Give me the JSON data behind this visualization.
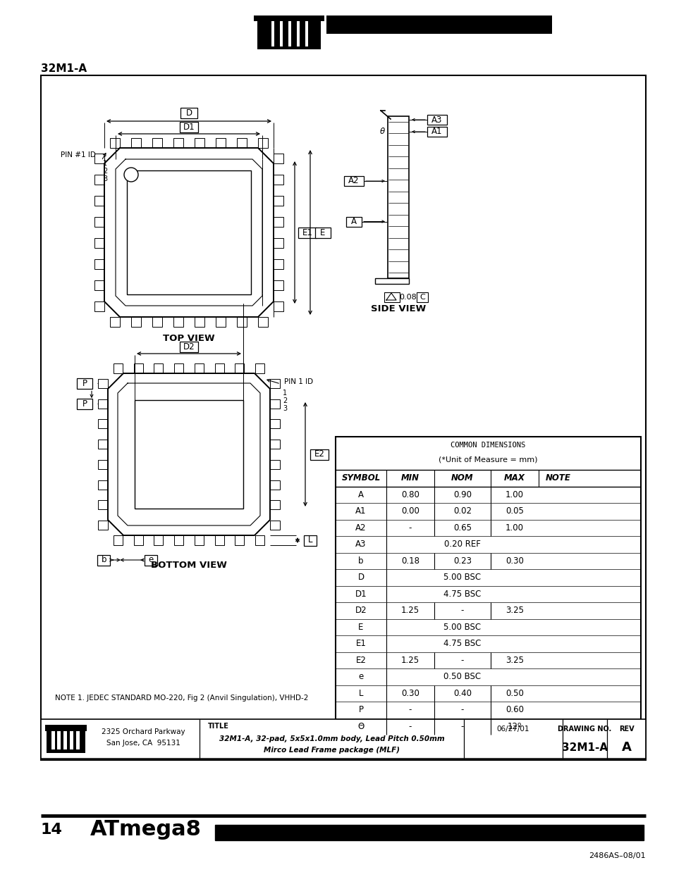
{
  "page_title": "32M1-A",
  "page_number": "14",
  "product": "ATmega8",
  "doc_number": "2486AS–08/01",
  "footer_date": "06/27/01",
  "footer_title_line1": "32M1-A, 32-pad, 5x5x1.0mm body, Lead Pitch 0.50mm",
  "footer_title_line2": "Mirco Lead Frame package (MLF)",
  "footer_drawing_no": "32M1-A",
  "footer_rev": "A",
  "footer_address_line1": "2325 Orchard Parkway",
  "footer_address_line2": "San Jose, CA  95131",
  "table_header": [
    "SYMBOL",
    "MIN",
    "NOM",
    "MAX",
    "NOTE"
  ],
  "table_title1": "COMMON DIMENSIONS",
  "table_title2": "(*Unit of Measure = mm)",
  "table_rows": [
    [
      "A",
      "0.80",
      "0.90",
      "1.00",
      ""
    ],
    [
      "A1",
      "0.00",
      "0.02",
      "0.05",
      ""
    ],
    [
      "A2",
      "-",
      "0.65",
      "1.00",
      ""
    ],
    [
      "A3",
      "",
      "0.20 REF",
      "",
      ""
    ],
    [
      "b",
      "0.18",
      "0.23",
      "0.30",
      ""
    ],
    [
      "D",
      "",
      "5.00 BSC",
      "",
      ""
    ],
    [
      "D1",
      "",
      "4.75 BSC",
      "",
      ""
    ],
    [
      "D2",
      "1.25",
      "-",
      "3.25",
      ""
    ],
    [
      "E",
      "",
      "5.00 BSC",
      "",
      ""
    ],
    [
      "E1",
      "",
      "4.75 BSC",
      "",
      ""
    ],
    [
      "E2",
      "1.25",
      "-",
      "3.25",
      ""
    ],
    [
      "e",
      "",
      "0.50 BSC",
      "",
      ""
    ],
    [
      "L",
      "0.30",
      "0.40",
      "0.50",
      ""
    ],
    [
      "P",
      "-",
      "-",
      "0.60",
      ""
    ],
    [
      "Θ",
      "-",
      "-",
      "12º",
      ""
    ]
  ],
  "note_text": "NOTE 1. JEDEC STANDARD MO-220, Fig 2 (Anvil Singulation), VHHD-2",
  "bg_color": "#ffffff"
}
